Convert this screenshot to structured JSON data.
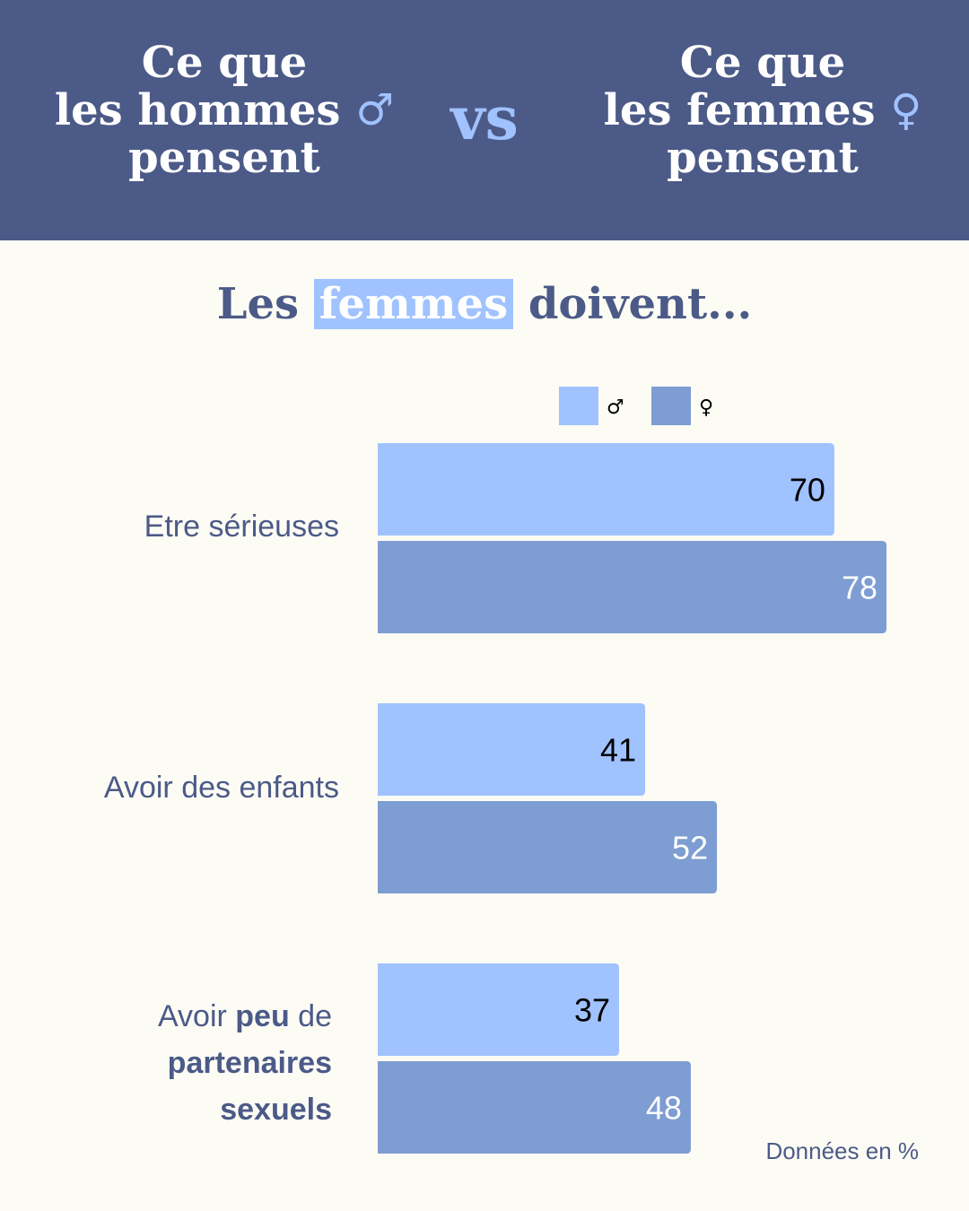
{
  "header": {
    "left": {
      "line1": "Ce que",
      "line2": "les hommes",
      "symbol": "♂",
      "line3": "pensent"
    },
    "vs": "vs",
    "right": {
      "line1": "Ce que",
      "line2": "les femmes",
      "symbol": "♀",
      "line3": "pensent"
    }
  },
  "subtitle": {
    "before": "Les",
    "highlight": "femmes",
    "after": "doivent..."
  },
  "colors": {
    "header_bg": "#4c5a88",
    "men": "#a0c2ff",
    "women": "#7e9dd2",
    "text": "#4c5a88",
    "background": "#fcfcf5"
  },
  "chart_data": {
    "type": "bar",
    "orientation": "horizontal",
    "categories": [
      "Etre sérieuses",
      "Avoir des enfants",
      "Avoir peu de partenaires sexuels"
    ],
    "category_labels": [
      [
        {
          "text": "Etre sérieuses",
          "bold": false
        }
      ],
      [
        {
          "text": "Avoir des enfants",
          "bold": false
        }
      ],
      [
        {
          "text": "Avoir ",
          "bold": false
        },
        {
          "text": "peu",
          "bold": true
        },
        {
          "text": " de",
          "bold": false
        },
        {
          "text": "\npartenaires",
          "bold": true
        },
        {
          "text": "\nsexuels",
          "bold": true
        }
      ]
    ],
    "series": [
      {
        "name": "♂",
        "color": "#a0c2ff",
        "values": [
          70,
          41,
          37
        ]
      },
      {
        "name": "♀",
        "color": "#7e9dd2",
        "values": [
          78,
          52,
          48
        ]
      }
    ],
    "xlim": [
      0,
      100
    ],
    "legend": "top",
    "grid": false,
    "footnote": "Données en %"
  }
}
